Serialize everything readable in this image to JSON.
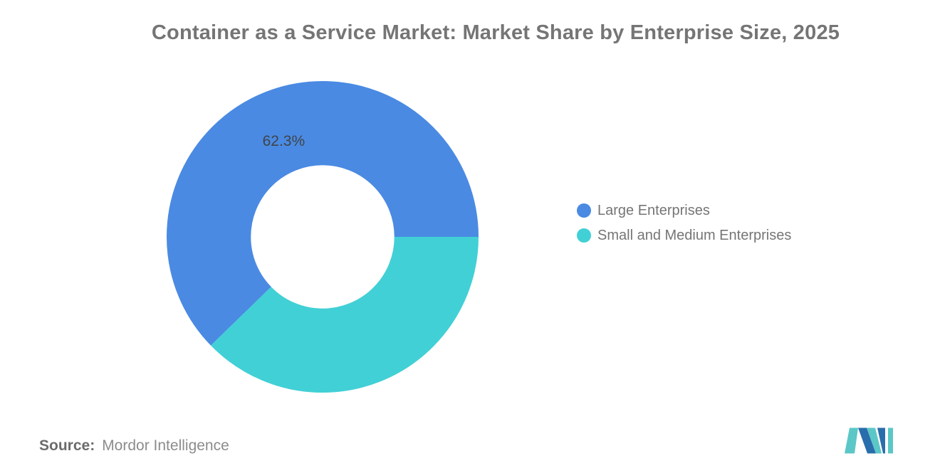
{
  "header": {
    "title": "Container as a Service Market: Market Share by Enterprise Size, 2025"
  },
  "chart_data": {
    "type": "pie",
    "subtype": "donut",
    "title": "Container as a Service Market: Market Share by Enterprise Size, 2025",
    "labels": [
      "Large Enterprises",
      "Small and Medium Enterprises"
    ],
    "values": [
      62.3,
      37.7
    ],
    "colors": [
      "#4A8AE2",
      "#41D0D5"
    ],
    "slice_labels": [
      "62.3%",
      ""
    ],
    "slice_label_color": "#404448",
    "hole_ratio": 0.46,
    "start_angle_deg": 225.72,
    "legend_position": "right",
    "background": "#ffffff"
  },
  "source": {
    "prefix": "Source:",
    "text": "Mordor Intelligence"
  },
  "logo": {
    "name": "mordor-intelligence-logo",
    "teal": "#5BC7C6",
    "blue": "#2A6DAC"
  }
}
